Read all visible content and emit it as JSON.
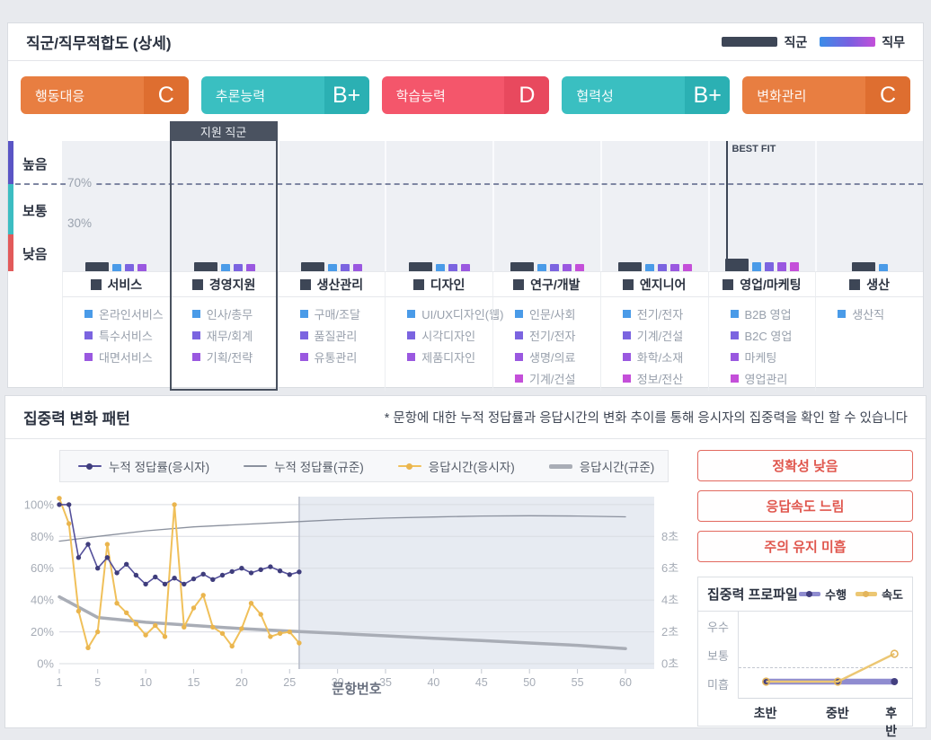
{
  "chart_data": [
    {
      "type": "bar",
      "title": "직군/직무적합도 (상세)",
      "ylim": [
        0,
        105
      ],
      "thresholds": {
        "high_above": 70,
        "low_below": 30
      },
      "y_band_labels": [
        "높음",
        "보통",
        "낮음"
      ],
      "categories": [
        {
          "name": "서비스",
          "group_score": 7,
          "highlight": false,
          "best_fit": false,
          "jobs": [
            {
              "label": "온라인서비스",
              "score": 6
            },
            {
              "label": "특수서비스",
              "score": 6
            },
            {
              "label": "대면서비스",
              "score": 6
            }
          ]
        },
        {
          "name": "경영지원",
          "group_score": 7,
          "highlight": true,
          "best_fit": false,
          "jobs": [
            {
              "label": "인사/총무",
              "score": 6
            },
            {
              "label": "재무/회계",
              "score": 6
            },
            {
              "label": "기획/전략",
              "score": 6
            }
          ]
        },
        {
          "name": "생산관리",
          "group_score": 7,
          "highlight": false,
          "best_fit": false,
          "jobs": [
            {
              "label": "구매/조달",
              "score": 6
            },
            {
              "label": "품질관리",
              "score": 6
            },
            {
              "label": "유통관리",
              "score": 6
            }
          ]
        },
        {
          "name": "디자인",
          "group_score": 7,
          "highlight": false,
          "best_fit": false,
          "jobs": [
            {
              "label": "UI/UX디자인(웹)",
              "score": 6
            },
            {
              "label": "시각디자인",
              "score": 6
            },
            {
              "label": "제품디자인",
              "score": 6
            }
          ]
        },
        {
          "name": "연구/개발",
          "group_score": 7,
          "highlight": false,
          "best_fit": false,
          "jobs": [
            {
              "label": "인문/사회",
              "score": 6
            },
            {
              "label": "전기/전자",
              "score": 6
            },
            {
              "label": "생명/의료",
              "score": 6
            },
            {
              "label": "기계/건설",
              "score": 6
            }
          ]
        },
        {
          "name": "엔지니어",
          "group_score": 7,
          "highlight": false,
          "best_fit": false,
          "jobs": [
            {
              "label": "전기/전자",
              "score": 6
            },
            {
              "label": "기계/건설",
              "score": 6
            },
            {
              "label": "화학/소재",
              "score": 6
            },
            {
              "label": "정보/전산",
              "score": 6
            }
          ]
        },
        {
          "name": "영업/마케팅",
          "group_score": 10,
          "highlight": false,
          "best_fit": true,
          "jobs": [
            {
              "label": "B2B 영업",
              "score": 7.5
            },
            {
              "label": "B2C 영업",
              "score": 7.5
            },
            {
              "label": "마케팅",
              "score": 7.5
            },
            {
              "label": "영업관리",
              "score": 7.5
            }
          ]
        },
        {
          "name": "생산",
          "group_score": 7,
          "highlight": false,
          "best_fit": false,
          "jobs": [
            {
              "label": "생산직",
              "score": 6
            }
          ]
        }
      ]
    },
    {
      "type": "line",
      "xlabel": "문항번호",
      "x_ticks": [
        1,
        5,
        10,
        15,
        20,
        25,
        30,
        35,
        40,
        45,
        50,
        55,
        60
      ],
      "x_range": [
        1,
        63
      ],
      "left_axis": {
        "ticks": [
          "0%",
          "20%",
          "40%",
          "60%",
          "80%",
          "100%"
        ],
        "range": [
          0,
          105
        ]
      },
      "right_axis": {
        "ticks": [
          "0초",
          "2초",
          "4초",
          "6초",
          "8초"
        ],
        "range": [
          0,
          10.5
        ]
      },
      "divider_x": 26,
      "series": [
        {
          "name": "누적 정답률(응시자)",
          "axis": "left",
          "color": "#55519b",
          "marker_color": "#3f3d7c",
          "markers": true,
          "width": 1.6,
          "x": [
            1,
            2,
            3,
            4,
            5,
            6,
            7,
            8,
            9,
            10,
            11,
            12,
            13,
            14,
            15,
            16,
            17,
            18,
            19,
            20,
            21,
            22,
            23,
            24,
            25,
            26
          ],
          "values": [
            100,
            100,
            66.7,
            75,
            60,
            66.7,
            57.1,
            62.5,
            55.6,
            50,
            54.5,
            50,
            53.8,
            50,
            53.3,
            56.3,
            52.9,
            55.6,
            57.9,
            60,
            57.1,
            59.1,
            60.9,
            58.3,
            56,
            57.7
          ]
        },
        {
          "name": "누적 정답률(규준)",
          "axis": "left",
          "color": "#8b919e",
          "markers": false,
          "width": 1.3,
          "x": [
            1,
            5,
            10,
            15,
            20,
            25,
            30,
            35,
            40,
            45,
            50,
            55,
            60
          ],
          "values": [
            77,
            80,
            83.5,
            86,
            87.5,
            89,
            90.5,
            91.5,
            92.2,
            92.8,
            93,
            92.8,
            92.3
          ]
        },
        {
          "name": "응답시간(응시자)",
          "axis": "right",
          "color": "#f0c05a",
          "marker_color": "#eab54e",
          "markers": true,
          "width": 2,
          "x": [
            1,
            2,
            3,
            4,
            5,
            6,
            7,
            8,
            9,
            10,
            11,
            12,
            13,
            14,
            15,
            16,
            17,
            18,
            19,
            20,
            21,
            22,
            23,
            24,
            25,
            26
          ],
          "values": [
            10.4,
            8.8,
            3.3,
            1.0,
            2.0,
            7.5,
            3.8,
            3.2,
            2.5,
            1.8,
            2.4,
            1.7,
            10.0,
            2.3,
            3.5,
            4.3,
            2.3,
            1.9,
            1.1,
            2.2,
            3.8,
            3.1,
            1.7,
            1.9,
            2.0,
            1.3
          ]
        },
        {
          "name": "응답시간(규준)",
          "axis": "right",
          "color": "#a9adb6",
          "markers": false,
          "width": 3.5,
          "x": [
            1,
            5,
            10,
            15,
            20,
            25,
            30,
            35,
            40,
            45,
            50,
            55,
            60
          ],
          "values": [
            4.2,
            2.9,
            2.6,
            2.4,
            2.2,
            2.05,
            1.9,
            1.75,
            1.6,
            1.45,
            1.3,
            1.15,
            0.95
          ]
        }
      ]
    },
    {
      "type": "line",
      "categories": [
        "초반",
        "중반",
        "후반"
      ],
      "y_labels": [
        "우수",
        "보통",
        "미흡"
      ],
      "series": [
        {
          "name": "수행",
          "values": [
            "미흡",
            "미흡",
            "미흡"
          ]
        },
        {
          "name": "속도",
          "values": [
            "미흡",
            "미흡",
            "보통"
          ]
        }
      ]
    }
  ],
  "top_card": {
    "title": "직군/직무적합도 (상세)",
    "legend": {
      "group_label": "직군",
      "job_label": "직무"
    },
    "grade_badges": [
      {
        "label": "행동대응",
        "grade": "C",
        "bg": "#e87e41",
        "grade_bg": "#de6e30"
      },
      {
        "label": "추론능력",
        "grade": "B+",
        "bg": "#3abfc1",
        "grade_bg": "#2bb0b3"
      },
      {
        "label": "학습능력",
        "grade": "D",
        "bg": "#f4566b",
        "grade_bg": "#e8495e"
      },
      {
        "label": "협력성",
        "grade": "B+",
        "bg": "#3abfc1",
        "grade_bg": "#2bb0b3"
      },
      {
        "label": "변화관리",
        "grade": "C",
        "bg": "#e87e41",
        "grade_bg": "#de6e30"
      }
    ],
    "y_axis": {
      "labels": [
        "높음",
        "보통",
        "낮음"
      ],
      "colors": [
        "#5a55c5",
        "#3cbdc2",
        "#e25a5a"
      ],
      "line_70": "70%",
      "line_30": "30%"
    },
    "applied_group_label": "지원 직군",
    "best_fit_label": "BEST FIT",
    "group_bar_color": "#3d4656",
    "job_bar_colors": [
      "#4a9be8",
      "#7b64e0",
      "#9a58e0",
      "#c44fd9"
    ]
  },
  "bottom_card": {
    "title": "집중력 변화 패턴",
    "note": "* 문항에 대한 누적 정답률과 응답시간의 변화 추이를 통해 응시자의 집중력을 확인 할 수 있습니다",
    "alerts": [
      "정확성 낮음",
      "응답속도 느림",
      "주의 유지 미흡"
    ],
    "alert_color": "#e0574e",
    "profile": {
      "title": "집중력 프로파일",
      "legend": [
        {
          "label": "수행",
          "color": "#8f8cd0",
          "marker": "#433f80"
        },
        {
          "label": "속도",
          "color": "#ecc773",
          "marker": "#e3b55c"
        }
      ]
    }
  }
}
